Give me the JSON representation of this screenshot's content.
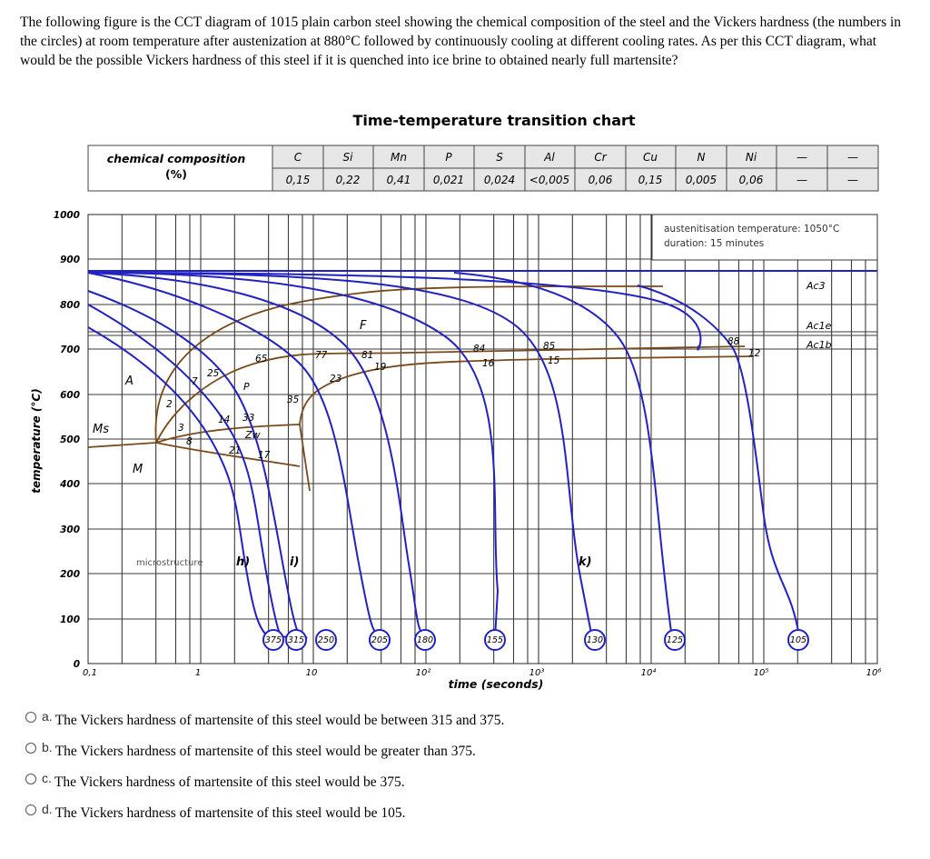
{
  "question": {
    "text": "The following figure is the CCT diagram of 1015 plain carbon steel showing the chemical composition of the steel and the Vickers hardness (the numbers in the circles) at room temperature after austenization at 880°C followed by continuously cooling at different cooling rates.  As per this CCT diagram, what would be the possible Vickers hardness of this steel if it is quenched into ice brine to obtained nearly full martensite?"
  },
  "chart": {
    "title": "Time-temperature transition chart",
    "composition_label_line1": "chemical composition",
    "composition_label_line2": "(%)",
    "composition": [
      {
        "element": "C",
        "value": "0,15"
      },
      {
        "element": "Si",
        "value": "0,22"
      },
      {
        "element": "Mn",
        "value": "0,41"
      },
      {
        "element": "P",
        "value": "0,021"
      },
      {
        "element": "S",
        "value": "0,024"
      },
      {
        "element": "Al",
        "value": "<0,005"
      },
      {
        "element": "Cr",
        "value": "0,06"
      },
      {
        "element": "Cu",
        "value": "0,15"
      },
      {
        "element": "N",
        "value": "0,005"
      },
      {
        "element": "Ni",
        "value": "0,06"
      },
      {
        "element": "—",
        "value": "—"
      },
      {
        "element": "—",
        "value": "—"
      }
    ],
    "note_line1": "austenitisation temperature: 1050°C",
    "note_line2": "duration: 15 minutes",
    "ylabel": "temperature (°C)",
    "xlabel": "time (seconds)",
    "y_ticks": [
      "1000",
      "900",
      "800",
      "700",
      "600",
      "500",
      "400",
      "300",
      "200",
      "100",
      "0"
    ],
    "x_ticks": [
      "0,1",
      "1",
      "10",
      "10²",
      "10³",
      "10⁴",
      "10⁵",
      "10⁶"
    ],
    "phase_labels": {
      "A": "A",
      "F": "F",
      "P": "P",
      "Zw": "Zw",
      "M": "M",
      "Ms": "Ms",
      "Ac3": "Ac3",
      "Ac1e": "Ac1e",
      "Ac1b": "Ac1b"
    },
    "microstructure_label": "microstructure",
    "curve_letters": [
      "h)",
      "i)",
      "k)"
    ],
    "hardness_circles": [
      "375",
      "315",
      "250",
      "205",
      "180",
      "155",
      "130",
      "125",
      "105"
    ],
    "percent_labels": [
      "2",
      "3",
      "8",
      "7",
      "25",
      "65",
      "14",
      "33",
      "21",
      "17",
      "35",
      "77",
      "23",
      "81",
      "19",
      "84",
      "16",
      "85",
      "15",
      "88",
      "12"
    ]
  },
  "chart_data": {
    "type": "line",
    "title": "Time-temperature transition chart",
    "xlabel": "time (seconds)",
    "ylabel": "temperature (°C)",
    "xscale": "log",
    "xlim": [
      0.1,
      1000000
    ],
    "ylim": [
      0,
      1000
    ],
    "grid": true,
    "composition_pct": {
      "C": 0.15,
      "Si": 0.22,
      "Mn": 0.41,
      "P": 0.021,
      "S": 0.024,
      "Al": "<0.005",
      "Cr": 0.06,
      "Cu": 0.15,
      "N": 0.005,
      "Ni": 0.06
    },
    "austenitisation": {
      "temperature_C": 1050,
      "duration_min": 15
    },
    "cooling_curves_hardness_HV": [
      375,
      315,
      250,
      205,
      180,
      155,
      130,
      125,
      105
    ],
    "cooling_curve_end_times_s": [
      5,
      8,
      13,
      40,
      100,
      400,
      3000,
      15000,
      200000
    ],
    "transformation_lines": {
      "Ac3_C": 870,
      "Ac1e_C": 735,
      "Ac1b_C": 725,
      "Ms_C": 495
    },
    "annotations": [
      "A",
      "F",
      "P",
      "Zw",
      "M",
      "Ms",
      "Ac3",
      "Ac1e",
      "Ac1b",
      "h)",
      "i)",
      "k)",
      "microstructure"
    ]
  },
  "answers": {
    "options": [
      {
        "letter": "a.",
        "text": "The Vickers hardness of martensite of this steel would be between 315 and 375."
      },
      {
        "letter": "b.",
        "text": "The Vickers hardness of martensite of this steel would be greater than 375."
      },
      {
        "letter": "c.",
        "text": "The Vickers hardness of martensite of this steel would be 375."
      },
      {
        "letter": "d.",
        "text": "The Vickers hardness of martensite of this steel would be 105."
      }
    ]
  },
  "colors": {
    "curve": "#2020c0",
    "phase": "#7a4a1a",
    "grid": "#333333"
  }
}
